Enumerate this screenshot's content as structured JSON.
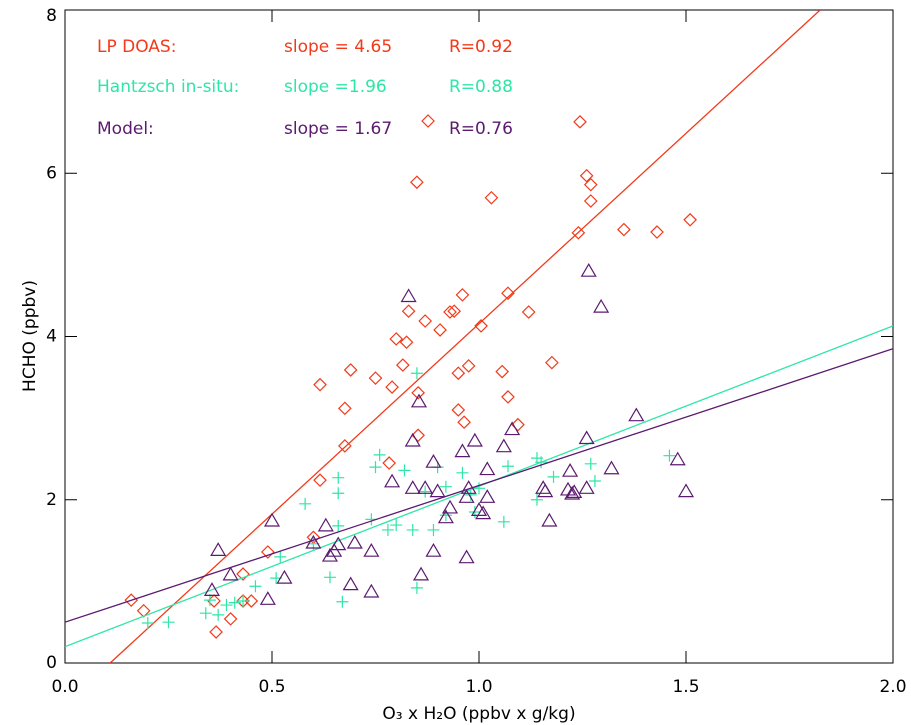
{
  "chart_data": {
    "type": "scatter",
    "x_label": "O₃ x H₂O  (ppbv x g/kg)",
    "y_label": "HCHO (ppbv)",
    "xlim": [
      0,
      2.0
    ],
    "ylim": [
      0,
      8
    ],
    "xticks": [
      {
        "value": 0,
        "label": "0.0"
      },
      {
        "value": 0.5,
        "label": "0.5"
      },
      {
        "value": 1.0,
        "label": "1.0"
      },
      {
        "value": 1.5,
        "label": "1.5"
      },
      {
        "value": 2.0,
        "label": "2.0"
      }
    ],
    "yticks": [
      0,
      2,
      4,
      6,
      8
    ],
    "series": [
      {
        "name": "LP DOAS:",
        "slope_text": "slope = 4.65",
        "r_text": "R=0.92",
        "color": "#f23a1a",
        "marker": "diamond",
        "fit": {
          "x": [
            0.109,
            1.824
          ],
          "y": [
            0,
            8
          ]
        },
        "x": [
          0.877,
          1.244,
          0.85,
          1.03,
          1.26,
          1.27,
          1.27,
          1.24,
          1.35,
          1.43,
          1.51,
          0.83,
          0.96,
          1.07,
          1.12,
          0.87,
          0.93,
          0.94,
          1.005,
          0.906,
          0.8,
          0.825,
          1.176,
          0.975,
          0.816,
          1.056,
          0.95,
          0.69,
          0.75,
          0.616,
          0.79,
          0.853,
          1.07,
          1.094,
          0.95,
          0.964,
          0.676,
          0.853,
          0.676,
          0.783,
          0.616,
          0.6,
          0.49,
          0.16,
          0.19,
          0.43,
          0.43,
          0.45,
          0.36,
          0.4,
          0.365
        ],
        "values": [
          6.64,
          6.63,
          5.89,
          5.7,
          5.97,
          5.86,
          5.66,
          5.27,
          5.31,
          5.28,
          5.43,
          4.31,
          4.51,
          4.53,
          4.3,
          4.19,
          4.3,
          4.31,
          4.13,
          4.08,
          3.97,
          3.93,
          3.68,
          3.64,
          3.65,
          3.57,
          3.55,
          3.59,
          3.49,
          3.41,
          3.38,
          3.31,
          3.26,
          2.92,
          3.1,
          2.95,
          3.12,
          2.79,
          2.66,
          2.45,
          2.24,
          1.54,
          1.36,
          0.77,
          0.64,
          1.09,
          0.76,
          0.76,
          0.76,
          0.54,
          0.38
        ]
      },
      {
        "name": "Hantzsch in-situ:",
        "slope_text": "slope =1.96",
        "r_text": "R=0.88",
        "color": "#2ee6a6",
        "marker": "cross",
        "fit": {
          "x": [
            0,
            2.0
          ],
          "y": [
            0.2,
            4.13
          ]
        },
        "x": [
          0.2,
          0.25,
          0.34,
          0.35,
          0.37,
          0.39,
          0.41,
          0.43,
          0.46,
          0.51,
          0.52,
          0.58,
          0.6,
          0.64,
          0.66,
          0.66,
          0.66,
          0.67,
          0.74,
          0.75,
          0.76,
          0.78,
          0.8,
          0.82,
          0.84,
          0.85,
          0.85,
          0.87,
          0.89,
          0.9,
          0.92,
          0.92,
          0.96,
          0.98,
          0.99,
          1.0,
          1.06,
          1.07,
          1.14,
          1.14,
          1.15,
          1.18,
          1.27,
          1.28,
          1.46
        ],
        "values": [
          0.49,
          0.5,
          0.61,
          0.77,
          0.59,
          0.71,
          0.74,
          0.76,
          0.94,
          1.04,
          1.3,
          1.95,
          1.46,
          1.05,
          1.68,
          2.08,
          2.27,
          0.75,
          1.76,
          2.4,
          2.55,
          1.63,
          1.69,
          2.36,
          1.63,
          3.55,
          0.92,
          2.1,
          1.63,
          2.4,
          1.81,
          2.16,
          2.33,
          2.06,
          1.85,
          2.14,
          1.73,
          2.41,
          2.51,
          2.0,
          2.46,
          2.28,
          2.44,
          2.23,
          2.54
        ]
      },
      {
        "name": "Model:",
        "slope_text": "slope = 1.67",
        "r_text": "R=0.76",
        "color": "#5b1a70",
        "marker": "triangle",
        "fit": {
          "x": [
            0,
            2.0
          ],
          "y": [
            0.5,
            3.85
          ]
        },
        "x": [
          0.37,
          0.355,
          0.4,
          0.5,
          0.53,
          0.49,
          0.6,
          0.63,
          0.64,
          0.65,
          0.66,
          0.69,
          0.7,
          0.74,
          0.74,
          0.79,
          0.83,
          0.84,
          0.84,
          0.855,
          0.86,
          0.87,
          0.89,
          0.89,
          0.9,
          0.92,
          0.93,
          0.96,
          0.97,
          0.97,
          0.975,
          0.99,
          1.0,
          1.01,
          1.02,
          1.02,
          1.06,
          1.08,
          1.155,
          1.16,
          1.17,
          1.215,
          1.22,
          1.23,
          1.225,
          1.26,
          1.26,
          1.265,
          1.295,
          1.32,
          1.38,
          1.48,
          1.5
        ],
        "values": [
          1.38,
          0.89,
          1.08,
          1.74,
          1.04,
          0.78,
          1.47,
          1.68,
          1.31,
          1.37,
          1.45,
          0.96,
          1.47,
          1.37,
          0.87,
          2.22,
          4.49,
          2.72,
          2.14,
          3.2,
          1.08,
          2.14,
          1.37,
          2.46,
          2.1,
          1.78,
          1.9,
          2.59,
          1.29,
          2.03,
          2.14,
          2.72,
          1.87,
          1.83,
          2.37,
          2.03,
          2.65,
          2.86,
          2.14,
          2.1,
          1.74,
          2.12,
          2.35,
          2.09,
          2.07,
          2.14,
          2.75,
          4.8,
          4.36,
          2.38,
          3.03,
          2.49,
          2.1
        ]
      }
    ]
  }
}
